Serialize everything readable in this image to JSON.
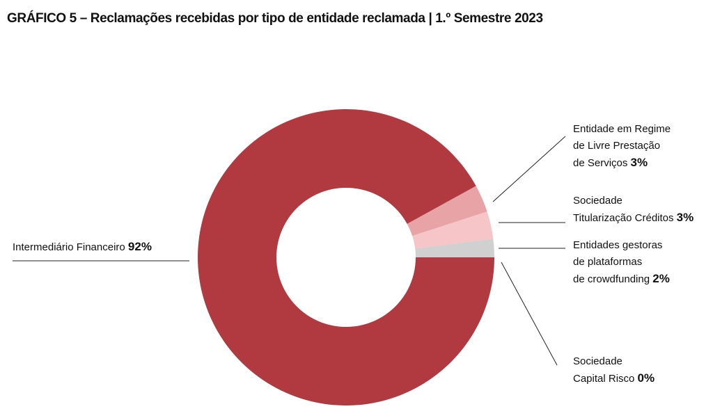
{
  "chart_data": {
    "type": "donut",
    "title": "GRÁFICO 5 – Reclamações recebidas por tipo de entidade reclamada | 1.º Semestre 2023",
    "categories": [
      "Intermediário Financeiro",
      "Entidade em Regime\nde Livre Prestação\nde Serviços",
      "Sociedade\nTitularização Créditos",
      "Entidades gestoras\nde plataformas\nde crowdfunding",
      "Sociedade\nCapital Risco"
    ],
    "values": [
      92,
      3,
      3,
      2,
      0
    ],
    "value_labels": [
      "92%",
      "3%",
      "3%",
      "2%",
      "0%"
    ],
    "colors": [
      "#b13a41",
      "#e7a3a6",
      "#f6c5c7",
      "#d0d0d0",
      "#9a9a9a"
    ]
  }
}
